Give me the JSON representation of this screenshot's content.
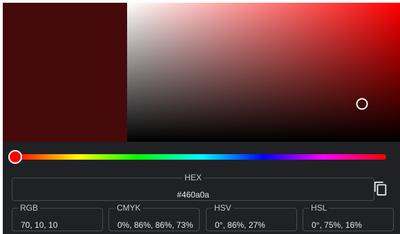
{
  "color": {
    "hex": "#460a0a",
    "preview_color": "#460a0a",
    "hue_color": "#ff0000",
    "saturation_percent": 86,
    "value_percent": 27,
    "hue_degrees": 0
  },
  "fields": {
    "hex_label": "HEX",
    "hex_value": "#460a0a",
    "rgb_label": "RGB",
    "rgb_value": "70, 10, 10",
    "cmyk_label": "CMYK",
    "cmyk_value": "0%, 86%, 86%, 73%",
    "hsv_label": "HSV",
    "hsv_value": "0°, 86%, 27%",
    "hsl_label": "HSL",
    "hsl_value": "0°, 75%, 16%"
  },
  "icons": {
    "copy": "copy-icon"
  }
}
